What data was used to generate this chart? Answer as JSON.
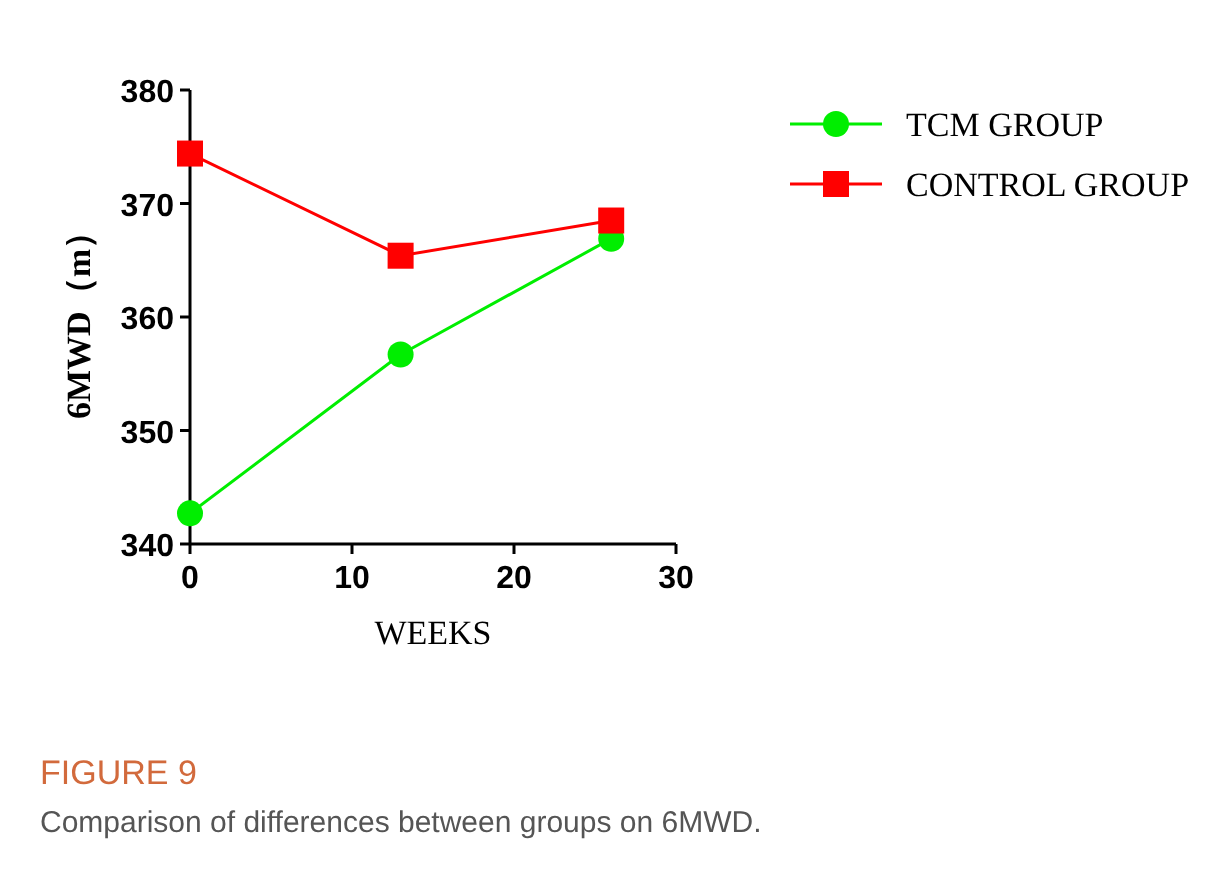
{
  "chart_data": {
    "type": "line",
    "xlabel": "WEEKS",
    "ylabel": "6MWD（m）",
    "series": [
      {
        "name": "TCM GROUP",
        "color": "#00ee00",
        "marker": "circle",
        "x": [
          0,
          13,
          26
        ],
        "values": [
          342.7,
          356.7,
          366.9
        ]
      },
      {
        "name": "CONTROL GROUP",
        "color": "#ff0000",
        "marker": "square",
        "x": [
          0,
          13,
          26
        ],
        "values": [
          374.4,
          365.4,
          368.5
        ]
      }
    ],
    "xlim": [
      0,
      30
    ],
    "xticks": [
      0,
      10,
      20,
      30
    ],
    "ylim": [
      340,
      380
    ],
    "yticks": [
      340,
      350,
      360,
      370,
      380
    ],
    "grid": false,
    "legend": "right",
    "line_style": "solid",
    "annotations": [
      "FIGURE 9",
      "Comparison of differences between groups on 6MWD."
    ]
  }
}
